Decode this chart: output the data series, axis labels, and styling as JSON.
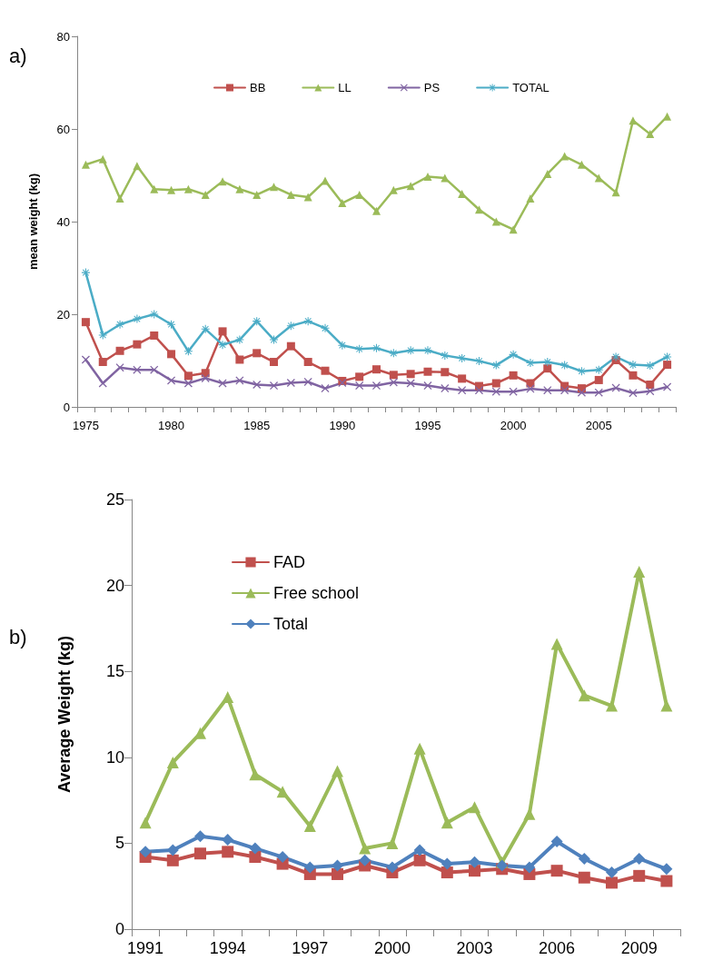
{
  "chart_data": [
    {
      "type": "line",
      "ylabel": "mean weight (kg)",
      "annotations": [
        "a)"
      ],
      "legend": "top",
      "grid": false,
      "categories": [
        "1975",
        null,
        null,
        null,
        null,
        "1980",
        null,
        null,
        null,
        null,
        "1985",
        null,
        null,
        null,
        null,
        "1990",
        null,
        null,
        null,
        null,
        "1995",
        null,
        null,
        null,
        null,
        "2000",
        null,
        null,
        null,
        null,
        "2005",
        null,
        null,
        null,
        null
      ],
      "ylim": [
        0,
        80
      ],
      "yticks": [
        0,
        20,
        40,
        60,
        80
      ],
      "series": [
        {
          "name": "BB",
          "color": "#c0504d",
          "marker": "square",
          "values": [
            18.3,
            9.7,
            12.1,
            13.5,
            15.4,
            11.4,
            6.7,
            7.3,
            16.3,
            10.2,
            11.6,
            9.7,
            13.1,
            9.7,
            7.8,
            5.6,
            6.5,
            8.1,
            6.9,
            7.1,
            7.6,
            7.5,
            6.1,
            4.5,
            5.1,
            6.8,
            5.1,
            8.3,
            4.5,
            4,
            5.8,
            10.1,
            6.8,
            4.8,
            9.1
          ]
        },
        {
          "name": "LL",
          "color": "#9bbb59",
          "marker": "triangle",
          "values": [
            52.3,
            53.5,
            45,
            52,
            47,
            46.8,
            47,
            45.8,
            48.7,
            47,
            45.8,
            47.5,
            45.8,
            45.3,
            48.8,
            44,
            45.8,
            42.3,
            46.8,
            47.7,
            49.7,
            49.4,
            46,
            42.6,
            40,
            38.3,
            45,
            50.3,
            54.1,
            52.3,
            49.4,
            46.3,
            61.8,
            58.9,
            62.7
          ]
        },
        {
          "name": "PS",
          "color": "#8064a2",
          "marker": "cross",
          "values": [
            10.2,
            5.1,
            8.5,
            8,
            8,
            5.7,
            5.1,
            6.2,
            5.1,
            5.7,
            4.8,
            4.6,
            5.2,
            5.4,
            4,
            5.2,
            4.6,
            4.6,
            5.3,
            5.1,
            4.6,
            4,
            3.6,
            3.6,
            3.3,
            3.3,
            3.9,
            3.6,
            3.6,
            3.1,
            3.1,
            4.1,
            3,
            3.4,
            4.3
          ]
        },
        {
          "name": "TOTAL",
          "color": "#4bacc6",
          "marker": "star",
          "values": [
            29,
            15.5,
            17.8,
            19,
            20,
            17.8,
            12,
            16.8,
            13.4,
            14.5,
            18.5,
            14.5,
            17.5,
            18.5,
            17,
            13.3,
            12.5,
            12.7,
            11.6,
            12.2,
            12.2,
            11.1,
            10.5,
            9.9,
            9,
            11.3,
            9.5,
            9.7,
            9,
            7.7,
            8,
            10.8,
            9.1,
            8.9,
            10.8
          ]
        }
      ]
    },
    {
      "type": "line",
      "ylabel": "Average Weight (kg)",
      "annotations": [
        "b)"
      ],
      "legend": "top left",
      "grid": false,
      "categories": [
        "1991",
        null,
        null,
        "1994",
        null,
        null,
        "1997",
        null,
        null,
        "2000",
        null,
        null,
        "2003",
        null,
        null,
        "2006",
        null,
        null,
        "2009",
        null
      ],
      "ylim": [
        0,
        25
      ],
      "yticks": [
        0,
        5,
        10,
        15,
        20,
        25
      ],
      "series": [
        {
          "name": "FAD",
          "color": "#c0504d",
          "marker": "square",
          "values": [
            4.2,
            4,
            4.4,
            4.5,
            4.2,
            3.8,
            3.2,
            3.2,
            3.7,
            3.3,
            4,
            3.3,
            3.4,
            3.5,
            3.2,
            3.4,
            3,
            2.7,
            3.1,
            2.8
          ]
        },
        {
          "name": "Free school",
          "color": "#9bbb59",
          "marker": "triangle",
          "values": [
            6.2,
            9.7,
            11.4,
            13.5,
            9,
            8,
            6,
            9.2,
            4.7,
            5,
            10.5,
            6.2,
            7.1,
            3.9,
            6.7,
            16.6,
            13.6,
            13,
            20.8,
            13
          ]
        },
        {
          "name": "Total",
          "color": "#4f81bd",
          "marker": "diamond",
          "values": [
            4.5,
            4.6,
            5.4,
            5.2,
            4.7,
            4.2,
            3.6,
            3.7,
            4,
            3.6,
            4.6,
            3.8,
            3.9,
            3.7,
            3.6,
            5.1,
            4.1,
            3.3,
            4.1,
            3.5
          ]
        }
      ]
    }
  ]
}
